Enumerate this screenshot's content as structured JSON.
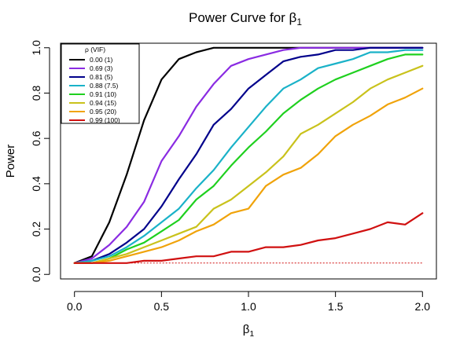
{
  "chart_data": {
    "type": "line",
    "title": "Power Curve for β",
    "title_subscript": "1",
    "xlabel": "β",
    "xlabel_subscript": "1",
    "ylabel": "Power",
    "xlim": [
      -0.08,
      2.08
    ],
    "ylim": [
      -0.02,
      1.02
    ],
    "xticks": [
      0.0,
      0.5,
      1.0,
      1.5,
      2.0
    ],
    "xtick_labels": [
      "0.0",
      "0.5",
      "1.0",
      "1.5",
      "2.0"
    ],
    "yticks": [
      0.0,
      0.2,
      0.4,
      0.6,
      0.8,
      1.0
    ],
    "ytick_labels": [
      "0.0",
      "0.2",
      "0.4",
      "0.6",
      "0.8",
      "1.0"
    ],
    "grid": false,
    "legend_position": "top-left",
    "legend_title": "ρ (VIF)",
    "x": [
      0.0,
      0.1,
      0.2,
      0.3,
      0.4,
      0.5,
      0.6,
      0.7,
      0.8,
      0.9,
      1.0,
      1.1,
      1.2,
      1.3,
      1.4,
      1.5,
      1.6,
      1.7,
      1.8,
      1.9,
      2.0
    ],
    "series": [
      {
        "name": "0.00 (1)",
        "color": "#000000",
        "values": [
          0.05,
          0.08,
          0.23,
          0.44,
          0.68,
          0.86,
          0.95,
          0.98,
          1.0,
          1.0,
          1.0,
          1.0,
          1.0,
          1.0,
          1.0,
          1.0,
          1.0,
          1.0,
          1.0,
          1.0,
          1.0
        ]
      },
      {
        "name": "0.69 (3)",
        "color": "#8a2be2",
        "values": [
          0.05,
          0.07,
          0.13,
          0.21,
          0.32,
          0.5,
          0.61,
          0.74,
          0.84,
          0.92,
          0.95,
          0.97,
          0.99,
          1.0,
          1.0,
          1.0,
          1.0,
          1.0,
          1.0,
          1.0,
          1.0
        ]
      },
      {
        "name": "0.81 (5)",
        "color": "#00008b",
        "values": [
          0.05,
          0.06,
          0.09,
          0.14,
          0.2,
          0.3,
          0.42,
          0.53,
          0.66,
          0.73,
          0.82,
          0.88,
          0.94,
          0.96,
          0.97,
          0.99,
          0.99,
          1.0,
          1.0,
          1.0,
          1.0
        ]
      },
      {
        "name": "0.88 (7.5)",
        "color": "#1ab2c8",
        "values": [
          0.05,
          0.06,
          0.08,
          0.12,
          0.17,
          0.23,
          0.29,
          0.38,
          0.46,
          0.56,
          0.65,
          0.74,
          0.82,
          0.86,
          0.91,
          0.93,
          0.95,
          0.98,
          0.98,
          0.99,
          0.99
        ]
      },
      {
        "name": "0.91 (10)",
        "color": "#1fd01f",
        "values": [
          0.05,
          0.05,
          0.07,
          0.11,
          0.14,
          0.19,
          0.24,
          0.33,
          0.39,
          0.48,
          0.56,
          0.63,
          0.71,
          0.77,
          0.82,
          0.86,
          0.89,
          0.92,
          0.95,
          0.97,
          0.97
        ]
      },
      {
        "name": "0.94 (15)",
        "color": "#c9c21c",
        "values": [
          0.05,
          0.05,
          0.07,
          0.09,
          0.12,
          0.15,
          0.18,
          0.21,
          0.29,
          0.33,
          0.39,
          0.45,
          0.52,
          0.62,
          0.66,
          0.71,
          0.76,
          0.82,
          0.86,
          0.89,
          0.92
        ]
      },
      {
        "name": "0.95 (20)",
        "color": "#f0a30a",
        "values": [
          0.05,
          0.05,
          0.06,
          0.08,
          0.1,
          0.12,
          0.15,
          0.19,
          0.22,
          0.27,
          0.29,
          0.39,
          0.44,
          0.47,
          0.53,
          0.61,
          0.66,
          0.7,
          0.75,
          0.78,
          0.82
        ]
      },
      {
        "name": "0.99 (100)",
        "color": "#d01010",
        "values": [
          0.05,
          0.05,
          0.05,
          0.05,
          0.06,
          0.06,
          0.07,
          0.08,
          0.08,
          0.1,
          0.1,
          0.12,
          0.12,
          0.13,
          0.15,
          0.16,
          0.18,
          0.2,
          0.23,
          0.22,
          0.27
        ]
      }
    ],
    "reference_line": {
      "y": 0.05,
      "color": "#d01010",
      "style": "dotted"
    }
  }
}
